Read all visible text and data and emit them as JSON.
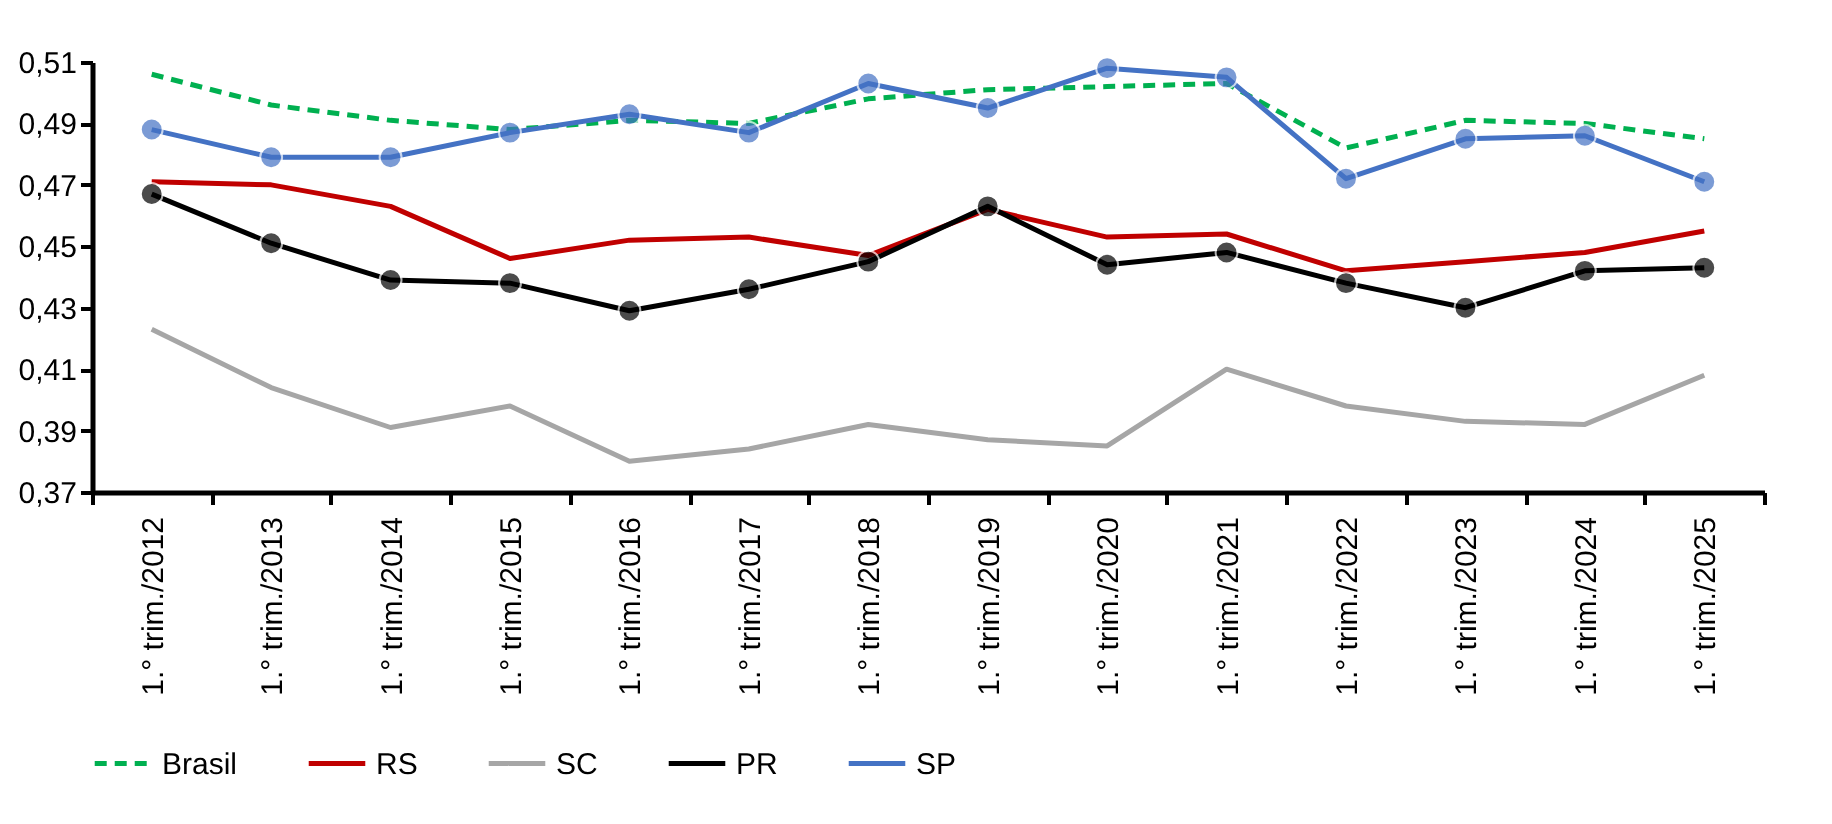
{
  "chart_data": {
    "type": "line",
    "categories": [
      "1.° trim./2012",
      "1.° trim./2013",
      "1.° trim./2014",
      "1.° trim./2015",
      "1.° trim./2016",
      "1.° trim./2017",
      "1.° trim./2018",
      "1.° trim./2019",
      "1.° trim./2020",
      "1.° trim./2021",
      "1.° trim./2022",
      "1.° trim./2023",
      "1.° trim./2024",
      "1.° trim./2025"
    ],
    "ylim": [
      0.37,
      0.51
    ],
    "yticks": [
      {
        "value": 0.37,
        "label": "0,37"
      },
      {
        "value": 0.39,
        "label": "0,39"
      },
      {
        "value": 0.41,
        "label": "0,41"
      },
      {
        "value": 0.43,
        "label": "0,43"
      },
      {
        "value": 0.45,
        "label": "0,45"
      },
      {
        "value": 0.47,
        "label": "0,47"
      },
      {
        "value": 0.49,
        "label": "0,49"
      },
      {
        "value": 0.51,
        "label": "0,51"
      }
    ],
    "grid": false,
    "legend": "bottom",
    "series": [
      {
        "name": "Brasil",
        "color": "#00b050",
        "line_style": "dashed",
        "marker": "none",
        "values": [
          0.506,
          0.496,
          0.491,
          0.488,
          0.491,
          0.49,
          0.498,
          0.501,
          0.502,
          0.503,
          0.482,
          0.491,
          0.49,
          0.485
        ]
      },
      {
        "name": "RS",
        "color": "#c00000",
        "line_style": "solid",
        "marker": "none",
        "values": [
          0.471,
          0.47,
          0.463,
          0.446,
          0.452,
          0.453,
          0.447,
          0.462,
          0.453,
          0.454,
          0.442,
          0.445,
          0.448,
          0.455
        ]
      },
      {
        "name": "SC",
        "color": "#a6a6a6",
        "line_style": "solid",
        "marker": "none",
        "values": [
          0.423,
          0.404,
          0.391,
          0.398,
          0.38,
          0.384,
          0.392,
          0.387,
          0.385,
          0.41,
          0.398,
          0.393,
          0.392,
          0.408
        ]
      },
      {
        "name": "PR",
        "color": "#000000",
        "line_style": "solid",
        "marker": "circle",
        "values": [
          0.467,
          0.451,
          0.439,
          0.438,
          0.429,
          0.436,
          0.445,
          0.463,
          0.444,
          0.448,
          0.438,
          0.43,
          0.442,
          0.443
        ]
      },
      {
        "name": "SP",
        "color": "#4472c4",
        "line_style": "solid",
        "marker": "circle",
        "values": [
          0.488,
          0.479,
          0.479,
          0.487,
          0.493,
          0.487,
          0.503,
          0.495,
          0.508,
          0.505,
          0.472,
          0.485,
          0.486,
          0.471
        ]
      }
    ]
  }
}
